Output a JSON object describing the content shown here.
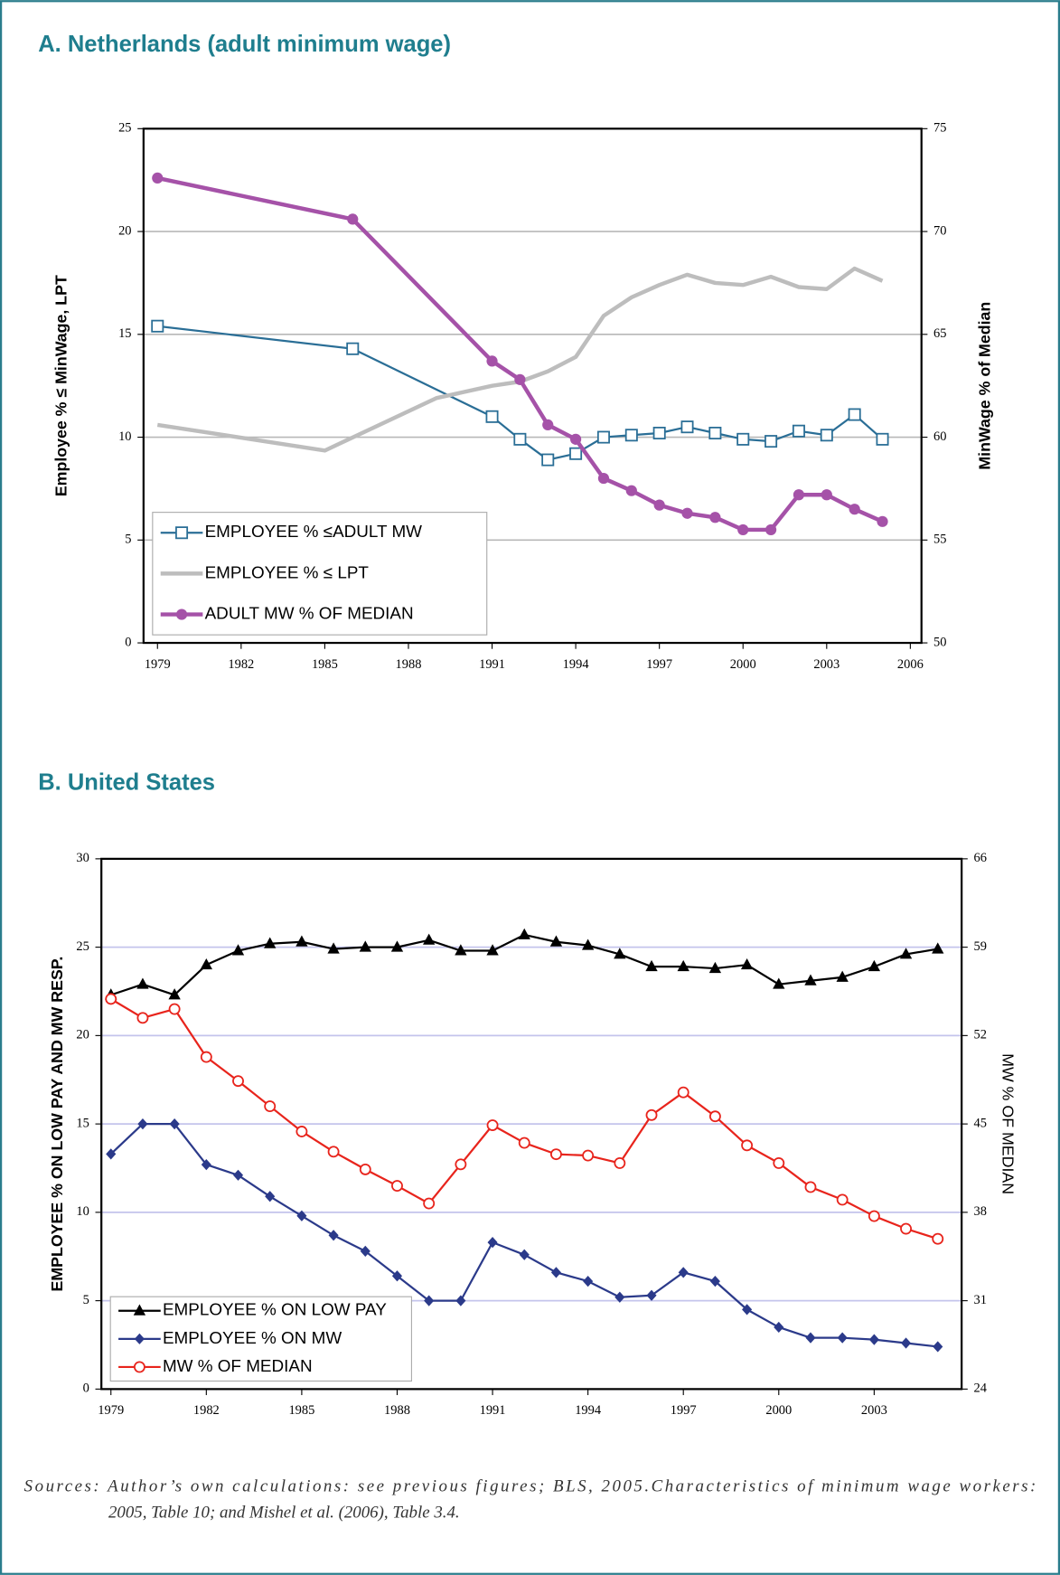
{
  "chart_data": [
    {
      "type": "line",
      "title": "A. Netherlands (adult minimum wage)",
      "y_label": "Employee % ≤ MinWage, LPT",
      "y2_label": "MinWage % of Median",
      "xlim": [
        1978.5,
        2006.4
      ],
      "xticks": [
        1979,
        1982,
        1985,
        1988,
        1991,
        1994,
        1997,
        2000,
        2003,
        2006
      ],
      "ylim": [
        0,
        25
      ],
      "yticks": [
        0,
        5,
        10,
        15,
        20,
        25
      ],
      "y2lim": [
        50,
        75
      ],
      "y2ticks": [
        50,
        55,
        60,
        65,
        70,
        75
      ],
      "grid": true,
      "grid_color": "#b8b8b8",
      "legend": "lower left",
      "series": [
        {
          "name": "EMPLOYEE % ≤ADULT MW",
          "color": "#2a6e96",
          "marker": "square-open",
          "line_width": 2,
          "x": [
            1979,
            1986,
            1991,
            1992,
            1993,
            1994,
            1995,
            1996,
            1997,
            1998,
            1999,
            2000,
            2001,
            2002,
            2003,
            2004,
            2005
          ],
          "values": [
            15.4,
            14.3,
            11.0,
            9.9,
            8.9,
            9.2,
            10.0,
            10.1,
            10.2,
            10.5,
            10.2,
            9.9,
            9.8,
            10.3,
            10.1,
            11.1,
            9.9
          ]
        },
        {
          "name": "EMPLOYEE % ≤ LPT",
          "color": "#bdbdbd",
          "marker": "none",
          "line_width": 4,
          "x": [
            1979,
            1985,
            1989,
            1991,
            1992,
            1993,
            1994,
            1995,
            1996,
            1997,
            1998,
            1999,
            2000,
            2001,
            2002,
            2003,
            2004,
            2005
          ],
          "values": [
            10.6,
            9.35,
            11.9,
            12.5,
            12.7,
            13.2,
            13.9,
            15.9,
            16.8,
            17.4,
            17.9,
            17.5,
            17.4,
            17.8,
            17.3,
            17.2,
            18.2,
            17.6
          ]
        },
        {
          "name": "ADULT MW % OF MEDIAN",
          "color": "#a552a8",
          "marker": "circle",
          "line_width": 4,
          "axis": "y2",
          "x": [
            1979,
            1986,
            1991,
            1992,
            1993,
            1994,
            1995,
            1996,
            1997,
            1998,
            1999,
            2000,
            2001,
            2002,
            2003,
            2004,
            2005
          ],
          "values": [
            72.6,
            70.6,
            63.7,
            62.8,
            60.6,
            59.9,
            58.0,
            57.4,
            56.7,
            56.3,
            56.1,
            55.5,
            55.5,
            57.2,
            57.2,
            56.5,
            55.9
          ]
        }
      ]
    },
    {
      "type": "line",
      "title": "B. United States",
      "y_label": "EMPLOYEE % ON LOW PAY AND MW RESP.",
      "y2_label": "MW % OF MEDIAN",
      "x": [
        1979,
        1980,
        1981,
        1982,
        1983,
        1984,
        1985,
        1986,
        1987,
        1988,
        1989,
        1990,
        1991,
        1992,
        1993,
        1994,
        1995,
        1996,
        1997,
        1998,
        1999,
        2000,
        2001,
        2002,
        2003,
        2004,
        2005
      ],
      "xlim": [
        1978.7,
        2005.75
      ],
      "xticks": [
        1979,
        1982,
        1985,
        1988,
        1991,
        1994,
        1997,
        2000,
        2003
      ],
      "ylim": [
        0,
        30
      ],
      "yticks": [
        0,
        5,
        10,
        15,
        20,
        25,
        30
      ],
      "y2lim": [
        24,
        66
      ],
      "y2ticks": [
        24,
        31,
        38,
        45,
        52,
        59,
        66
      ],
      "grid": true,
      "grid_color": "#c4c4ec",
      "legend": "lower left",
      "series": [
        {
          "name": "EMPLOYEE % ON LOW PAY",
          "color": "#000000",
          "marker": "triangle",
          "line_width": 2,
          "values": [
            22.3,
            22.9,
            22.3,
            24.0,
            24.8,
            25.2,
            25.3,
            24.9,
            25.0,
            25.0,
            25.4,
            24.8,
            24.8,
            25.7,
            25.3,
            25.1,
            24.6,
            23.9,
            23.9,
            23.8,
            24.0,
            22.9,
            23.1,
            23.3,
            23.9,
            24.6,
            24.9
          ]
        },
        {
          "name": "EMPLOYEE % ON MW",
          "color": "#2b3a8a",
          "marker": "diamond",
          "line_width": 2,
          "values": [
            13.3,
            15.0,
            15.0,
            12.7,
            12.1,
            10.9,
            9.8,
            8.7,
            7.8,
            6.4,
            5.0,
            5.0,
            8.3,
            7.6,
            6.6,
            6.1,
            5.2,
            5.3,
            6.6,
            6.1,
            4.5,
            3.5,
            2.9,
            2.9,
            2.8,
            2.6,
            2.4
          ]
        },
        {
          "name": "MW % OF MEDIAN",
          "color": "#e8241c",
          "marker": "circle-open",
          "line_width": 2,
          "axis": "y2",
          "values": [
            54.9,
            53.4,
            54.1,
            50.3,
            48.4,
            46.4,
            44.4,
            42.8,
            41.4,
            40.1,
            38.7,
            41.8,
            44.9,
            43.5,
            42.6,
            42.5,
            41.9,
            45.7,
            47.5,
            45.6,
            43.3,
            41.9,
            40.0,
            39.0,
            37.7,
            36.7,
            35.9
          ]
        }
      ]
    }
  ],
  "source": [
    "Sources: Author’s own calculations: see previous figures; BLS, 2005.Characteristics of  minimum wage workers:",
    "2005, Table 10; and Mishel et al. (2006), Table 3.4."
  ]
}
